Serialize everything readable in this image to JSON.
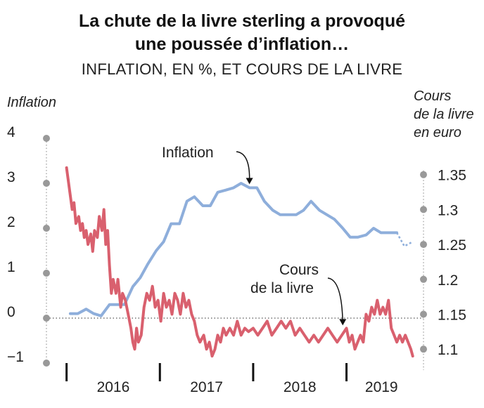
{
  "chart_data": {
    "type": "line",
    "title": "La chute de la livre sterling a provoqué une poussée d’inflation…",
    "title_lines": [
      "La chute de la livre sterling a provoqué",
      "une poussée d’inflation…"
    ],
    "subtitle": "INFLATION, EN %, ET COURS DE LA LIVRE",
    "y_left": {
      "label": "Inflation",
      "range": [
        -1,
        4
      ],
      "ticks": [
        -1,
        0,
        1,
        2,
        3,
        4
      ],
      "tick_labels": [
        "−1",
        "0",
        "1",
        "2",
        "3",
        "4"
      ]
    },
    "y_right": {
      "label_lines": [
        "Cours",
        "de la livre",
        "en euro"
      ],
      "range": [
        1.07,
        1.4
      ],
      "ticks": [
        1.1,
        1.15,
        1.2,
        1.25,
        1.3,
        1.35
      ],
      "tick_labels": [
        "1.1",
        "1.15",
        "1.2",
        "1.25",
        "1.3",
        "1.35"
      ]
    },
    "x": {
      "range": [
        2015.95,
        2019.75
      ],
      "year_labels": [
        "2016",
        "2017",
        "2018",
        "2019"
      ],
      "year_boundaries": [
        2016.0,
        2017.0,
        2018.0,
        2019.0
      ]
    },
    "grid": false,
    "baseline_zero": true,
    "series": [
      {
        "name": "Inflation",
        "axis": "left",
        "color": "#8eaedb",
        "points": [
          [
            2016.04,
            0.1
          ],
          [
            2016.12,
            0.1
          ],
          [
            2016.21,
            0.2
          ],
          [
            2016.29,
            0.1
          ],
          [
            2016.37,
            0.05
          ],
          [
            2016.46,
            0.3
          ],
          [
            2016.54,
            0.3
          ],
          [
            2016.62,
            0.3
          ],
          [
            2016.71,
            0.7
          ],
          [
            2016.79,
            0.9
          ],
          [
            2016.87,
            1.2
          ],
          [
            2016.96,
            1.5
          ],
          [
            2017.04,
            1.7
          ],
          [
            2017.12,
            2.1
          ],
          [
            2017.21,
            2.1
          ],
          [
            2017.29,
            2.6
          ],
          [
            2017.37,
            2.7
          ],
          [
            2017.46,
            2.5
          ],
          [
            2017.54,
            2.5
          ],
          [
            2017.62,
            2.8
          ],
          [
            2017.71,
            2.85
          ],
          [
            2017.79,
            2.9
          ],
          [
            2017.87,
            3.0
          ],
          [
            2017.96,
            2.9
          ],
          [
            2018.04,
            2.9
          ],
          [
            2018.12,
            2.6
          ],
          [
            2018.21,
            2.4
          ],
          [
            2018.29,
            2.3
          ],
          [
            2018.37,
            2.3
          ],
          [
            2018.46,
            2.3
          ],
          [
            2018.54,
            2.4
          ],
          [
            2018.62,
            2.6
          ],
          [
            2018.71,
            2.4
          ],
          [
            2018.79,
            2.3
          ],
          [
            2018.87,
            2.2
          ],
          [
            2018.96,
            2.0
          ],
          [
            2019.04,
            1.8
          ],
          [
            2019.12,
            1.8
          ],
          [
            2019.21,
            1.85
          ],
          [
            2019.29,
            2.0
          ],
          [
            2019.37,
            1.9
          ],
          [
            2019.46,
            1.9
          ],
          [
            2019.54,
            1.9
          ]
        ],
        "dashed_points": [
          [
            2019.54,
            1.9
          ],
          [
            2019.62,
            1.6
          ],
          [
            2019.71,
            1.7
          ]
        ]
      },
      {
        "name": "Cours de la livre",
        "axis": "right",
        "color": "#d9606e",
        "points": [
          [
            2016.0,
            1.36
          ],
          [
            2016.03,
            1.33
          ],
          [
            2016.06,
            1.3
          ],
          [
            2016.08,
            1.31
          ],
          [
            2016.1,
            1.28
          ],
          [
            2016.13,
            1.29
          ],
          [
            2016.15,
            1.27
          ],
          [
            2016.17,
            1.28
          ],
          [
            2016.19,
            1.26
          ],
          [
            2016.21,
            1.27
          ],
          [
            2016.23,
            1.25
          ],
          [
            2016.26,
            1.265
          ],
          [
            2016.28,
            1.24
          ],
          [
            2016.3,
            1.27
          ],
          [
            2016.33,
            1.26
          ],
          [
            2016.35,
            1.29
          ],
          [
            2016.38,
            1.27
          ],
          [
            2016.4,
            1.3
          ],
          [
            2016.42,
            1.25
          ],
          [
            2016.44,
            1.27
          ],
          [
            2016.46,
            1.22
          ],
          [
            2016.48,
            1.18
          ],
          [
            2016.5,
            1.2
          ],
          [
            2016.53,
            1.18
          ],
          [
            2016.55,
            1.2
          ],
          [
            2016.58,
            1.16
          ],
          [
            2016.6,
            1.18
          ],
          [
            2016.63,
            1.17
          ],
          [
            2016.66,
            1.15
          ],
          [
            2016.69,
            1.13
          ],
          [
            2016.71,
            1.11
          ],
          [
            2016.73,
            1.1
          ],
          [
            2016.75,
            1.13
          ],
          [
            2016.77,
            1.11
          ],
          [
            2016.8,
            1.12
          ],
          [
            2016.83,
            1.16
          ],
          [
            2016.86,
            1.18
          ],
          [
            2016.89,
            1.17
          ],
          [
            2016.92,
            1.19
          ],
          [
            2016.95,
            1.16
          ],
          [
            2016.98,
            1.17
          ],
          [
            2017.01,
            1.14
          ],
          [
            2017.04,
            1.18
          ],
          [
            2017.07,
            1.16
          ],
          [
            2017.1,
            1.17
          ],
          [
            2017.13,
            1.15
          ],
          [
            2017.16,
            1.18
          ],
          [
            2017.19,
            1.17
          ],
          [
            2017.22,
            1.15
          ],
          [
            2017.25,
            1.18
          ],
          [
            2017.28,
            1.16
          ],
          [
            2017.31,
            1.17
          ],
          [
            2017.34,
            1.15
          ],
          [
            2017.37,
            1.14
          ],
          [
            2017.4,
            1.12
          ],
          [
            2017.43,
            1.11
          ],
          [
            2017.47,
            1.12
          ],
          [
            2017.5,
            1.1
          ],
          [
            2017.53,
            1.11
          ],
          [
            2017.56,
            1.09
          ],
          [
            2017.59,
            1.1
          ],
          [
            2017.62,
            1.12
          ],
          [
            2017.65,
            1.11
          ],
          [
            2017.68,
            1.13
          ],
          [
            2017.71,
            1.12
          ],
          [
            2017.75,
            1.13
          ],
          [
            2017.79,
            1.12
          ],
          [
            2017.83,
            1.14
          ],
          [
            2017.87,
            1.12
          ],
          [
            2017.91,
            1.13
          ],
          [
            2017.95,
            1.125
          ],
          [
            2018.0,
            1.13
          ],
          [
            2018.05,
            1.12
          ],
          [
            2018.1,
            1.13
          ],
          [
            2018.15,
            1.14
          ],
          [
            2018.2,
            1.12
          ],
          [
            2018.25,
            1.13
          ],
          [
            2018.3,
            1.14
          ],
          [
            2018.35,
            1.13
          ],
          [
            2018.4,
            1.14
          ],
          [
            2018.45,
            1.12
          ],
          [
            2018.5,
            1.13
          ],
          [
            2018.55,
            1.12
          ],
          [
            2018.6,
            1.11
          ],
          [
            2018.65,
            1.12
          ],
          [
            2018.7,
            1.11
          ],
          [
            2018.75,
            1.12
          ],
          [
            2018.8,
            1.13
          ],
          [
            2018.85,
            1.12
          ],
          [
            2018.9,
            1.11
          ],
          [
            2018.95,
            1.12
          ],
          [
            2019.0,
            1.13
          ],
          [
            2019.03,
            1.11
          ],
          [
            2019.06,
            1.12
          ],
          [
            2019.09,
            1.1
          ],
          [
            2019.12,
            1.11
          ],
          [
            2019.15,
            1.12
          ],
          [
            2019.18,
            1.11
          ],
          [
            2019.21,
            1.15
          ],
          [
            2019.24,
            1.14
          ],
          [
            2019.27,
            1.16
          ],
          [
            2019.3,
            1.15
          ],
          [
            2019.33,
            1.17
          ],
          [
            2019.36,
            1.15
          ],
          [
            2019.39,
            1.16
          ],
          [
            2019.42,
            1.15
          ],
          [
            2019.45,
            1.17
          ],
          [
            2019.48,
            1.13
          ],
          [
            2019.51,
            1.12
          ],
          [
            2019.54,
            1.11
          ],
          [
            2019.57,
            1.12
          ],
          [
            2019.6,
            1.11
          ],
          [
            2019.63,
            1.12
          ],
          [
            2019.66,
            1.11
          ],
          [
            2019.69,
            1.1
          ],
          [
            2019.71,
            1.09
          ]
        ]
      }
    ],
    "annotations": [
      {
        "series": "Inflation",
        "text_lines": [
          "Inflation"
        ],
        "target": [
          2017.96,
          2.9
        ]
      },
      {
        "series": "Cours de la livre",
        "text_lines": [
          "Cours",
          "de la livre"
        ],
        "target": [
          2018.96,
          1.125
        ]
      }
    ]
  }
}
